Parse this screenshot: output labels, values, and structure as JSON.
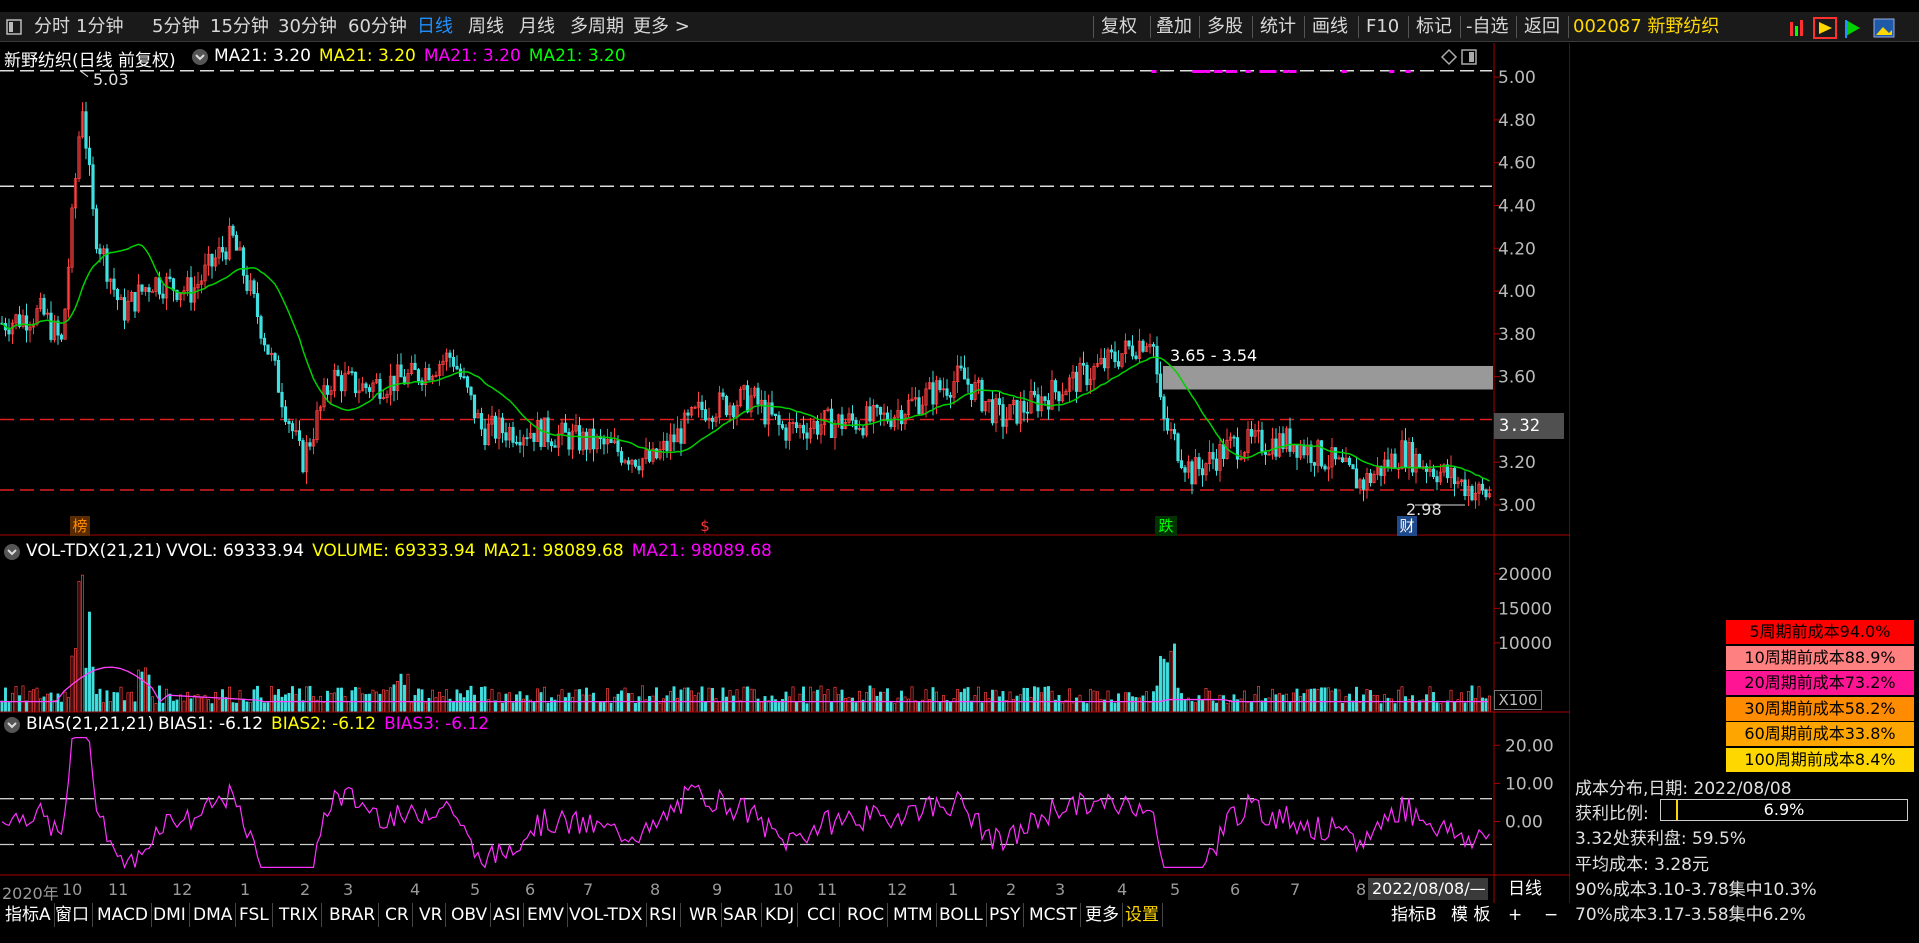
{
  "toolbar": {
    "left_tabs": [
      "分时",
      "1分钟",
      "5分钟",
      "15分钟",
      "30分钟",
      "60分钟",
      "日线",
      "周线",
      "月线",
      "多周期",
      "更多 >"
    ],
    "active_tab": "日线",
    "right_buttons": [
      "复权",
      "叠加",
      "多股",
      "统计",
      "画线",
      "F10",
      "标记",
      "-自选",
      "返回"
    ]
  },
  "stock": {
    "code_name": "002087 新野纺织"
  },
  "main_panel": {
    "name": "新野纺织(日线 前复权)",
    "ma_labels": [
      {
        "text": "MA21: 3.20",
        "color": "#ffffff"
      },
      {
        "text": "MA21: 3.20",
        "color": "#ffff00"
      },
      {
        "text": "MA21: 3.20",
        "color": "#ff00ff"
      },
      {
        "text": "MA21: 3.20",
        "color": "#00ff00"
      }
    ],
    "high_label": "5.03",
    "low_label": "2.98",
    "zone_label": "3.65 - 3.54",
    "current_price": "3.32",
    "markers": [
      {
        "text": "榜",
        "color": "#ff8c00",
        "bg": "#5a2a00"
      },
      {
        "text": "$",
        "color": "#ff3030",
        "bg": "none"
      },
      {
        "text": "跌",
        "color": "#00ff00",
        "bg": "#003300"
      },
      {
        "text": "财",
        "color": "#ffffff",
        "bg": "#1e4a8c"
      }
    ]
  },
  "vol_panel": {
    "name": "VOL-TDX(21,21)",
    "labels": [
      {
        "text": "VVOL: 69333.94",
        "color": "#ffffff"
      },
      {
        "text": "VOLUME: 69333.94",
        "color": "#ffff00"
      },
      {
        "text": "MA21: 98089.68",
        "color": "#ffff00"
      },
      {
        "text": "MA21: 98089.68",
        "color": "#ff00ff"
      }
    ],
    "multiplier": "X100"
  },
  "bias_panel": {
    "name": "BIAS(21,21,21)",
    "labels": [
      {
        "text": "BIAS1: -6.12",
        "color": "#ffffff"
      },
      {
        "text": "BIAS2: -6.12",
        "color": "#ffff00"
      },
      {
        "text": "BIAS3: -6.12",
        "color": "#ff00ff"
      }
    ]
  },
  "time_axis": {
    "months": [
      "2020年",
      "10",
      "11",
      "12",
      "1",
      "2",
      "3",
      "4",
      "5",
      "6",
      "7",
      "8",
      "9",
      "10",
      "11",
      "12",
      "1",
      "2",
      "3",
      "4",
      "5",
      "6",
      "7",
      "8"
    ],
    "current_date": "2022/08/08/—",
    "period": "日线"
  },
  "bottom_tabs": [
    "指标A",
    "窗口",
    "MACD",
    "DMI",
    "DMA",
    "FSL",
    "TRIX",
    "BRAR",
    "CR",
    "VR",
    "OBV",
    "ASI",
    "EMV",
    "VOL-TDX",
    "RSI",
    "WR",
    "SAR",
    "KDJ",
    "CCI",
    "ROC",
    "MTM",
    "BOLL",
    "PSY",
    "MCST",
    "更多",
    "设置"
  ],
  "bottom_right": [
    "指标B",
    "模 板",
    "+",
    "−"
  ],
  "cost_distribution": {
    "rows": [
      {
        "label": "5周期前成本94.0%",
        "color": "#ff0000"
      },
      {
        "label": "10周期前成本88.9%",
        "color": "#ff8080"
      },
      {
        "label": "20周期前成本73.2%",
        "color": "#ff1493"
      },
      {
        "label": "30周期前成本58.2%",
        "color": "#ff8c00"
      },
      {
        "label": "60周期前成本33.8%",
        "color": "#ffa500"
      },
      {
        "label": "100周期前成本8.4%",
        "color": "#ffd700"
      }
    ],
    "date_line": "成本分布,日期:  2022/08/08",
    "profit_label": "获利比例:",
    "profit_value": "6.9%",
    "profit_ratio": 0.069,
    "profit_at_price": "3.32处获利盘:  59.5%",
    "avg_cost": "平均成本:  3.28元",
    "cost90": "90%成本3.10-3.78集中10.3%",
    "cost70": "70%成本3.17-3.58集中6.2%"
  },
  "chart_data": [
    {
      "type": "candlestick",
      "title": "新野纺织(日线 前复权)",
      "y_ticks": [
        5.0,
        4.8,
        4.6,
        4.4,
        4.2,
        4.0,
        3.8,
        3.6,
        3.4,
        3.2,
        3.0
      ],
      "ylim": [
        2.93,
        5.08
      ],
      "high": 5.03,
      "low": 2.98,
      "close_last": 3.32,
      "zone": [
        3.54,
        3.65
      ],
      "dashed_levels": [
        5.03,
        4.49,
        3.4,
        3.07
      ],
      "ma21_last": 3.2
    },
    {
      "type": "bar",
      "title": "VOL-TDX(21,21)",
      "y_ticks": [
        20000,
        15000,
        10000
      ],
      "ylim": [
        0,
        22000
      ],
      "volume_last": 69333.94,
      "ma21_last": 98089.68,
      "unit": "X100"
    },
    {
      "type": "line",
      "title": "BIAS(21,21,21)",
      "y_ticks": [
        20.0,
        10.0,
        0.0
      ],
      "ylim": [
        -14,
        24
      ],
      "dashed_levels": [
        6,
        -6
      ],
      "bias_last": -6.12
    }
  ]
}
